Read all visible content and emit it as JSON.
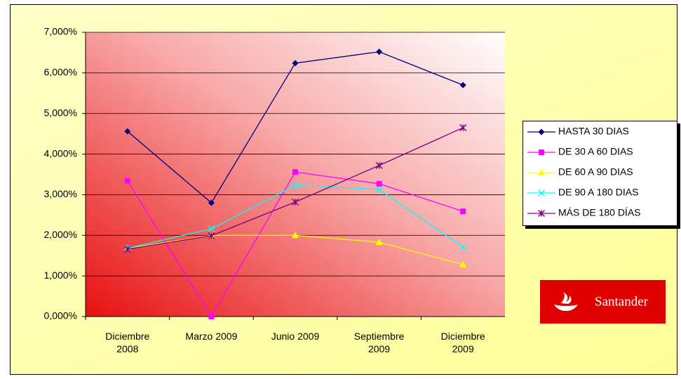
{
  "chart_data": {
    "type": "line",
    "categories": [
      "Diciembre 2008",
      "Marzo 2009",
      "Junio 2009",
      "Septiembre 2009",
      "Diciembre 2009"
    ],
    "series": [
      {
        "name": "HASTA 30 DIAS",
        "color": "#000080",
        "marker": "diamond",
        "values": [
          4.56,
          2.8,
          6.24,
          6.52,
          5.7
        ]
      },
      {
        "name": "DE 30 A 60 DIAS",
        "color": "#ff00ff",
        "marker": "square",
        "values": [
          3.34,
          0,
          3.56,
          3.27,
          2.59
        ]
      },
      {
        "name": "DE 60 A 90 DIAS",
        "color": "#ffff00",
        "marker": "triangle",
        "values": [
          1.68,
          2.0,
          2.0,
          1.83,
          1.28
        ]
      },
      {
        "name": "DE 90 A 180 DIAS",
        "color": "#00ffff",
        "marker": "x",
        "values": [
          1.68,
          2.16,
          3.23,
          3.13,
          1.71
        ]
      },
      {
        "name": "MÁS DE 180 DÍAS",
        "color": "#800080",
        "marker": "star",
        "values": [
          1.66,
          1.99,
          2.82,
          3.72,
          4.65
        ]
      }
    ],
    "ylim": [
      0,
      7
    ],
    "yticks": [
      {
        "value": 0,
        "label": "0,000%"
      },
      {
        "value": 1,
        "label": "1,000%"
      },
      {
        "value": 2,
        "label": "2,000%"
      },
      {
        "value": 3,
        "label": "3,000%"
      },
      {
        "value": 4,
        "label": "4,000%"
      },
      {
        "value": 5,
        "label": "5,000%"
      },
      {
        "value": 6,
        "label": "6,000%"
      },
      {
        "value": 7,
        "label": "7,000%"
      }
    ],
    "grid": true,
    "legend": "right",
    "logo": "Santander"
  }
}
